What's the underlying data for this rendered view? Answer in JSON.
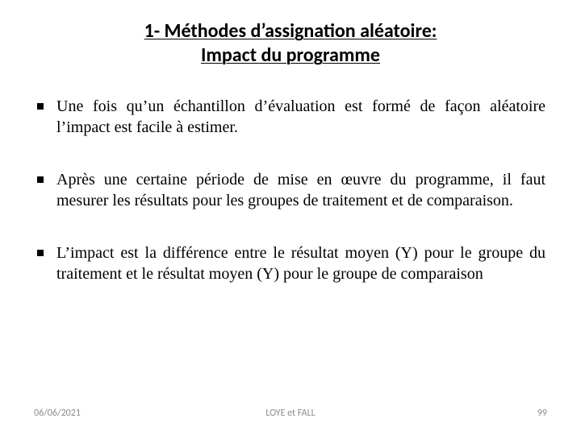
{
  "colors": {
    "background": "#ffffff",
    "title_text": "#000000",
    "body_text": "#000000",
    "bullet_marker": "#000000",
    "footer_text": "#8a8a8a"
  },
  "typography": {
    "title_font_family": "Calibri",
    "title_font_size_pt": 18,
    "title_font_weight": "bold",
    "title_underlined": true,
    "body_font_family": "Times New Roman",
    "body_font_size_pt": 15,
    "body_align": "justify",
    "footer_font_family": "Calibri",
    "footer_font_size_pt": 9
  },
  "title": {
    "line1": "1- Méthodes d’assignation aléatoire:",
    "line2": "Impact du programme"
  },
  "bullets": [
    "Une fois qu’un échantillon d’évaluation est formé de façon aléatoire l’impact est facile à estimer.",
    "Après une certaine période de mise en œuvre du programme, il faut mesurer les résultats pour les groupes de traitement et de comparaison.",
    "L’impact est la différence entre le résultat moyen (Y) pour le groupe du traitement et le résultat moyen (Y) pour le groupe de comparaison"
  ],
  "footer": {
    "date": "06/06/2021",
    "author": "LOYE et FALL",
    "page": "99"
  }
}
